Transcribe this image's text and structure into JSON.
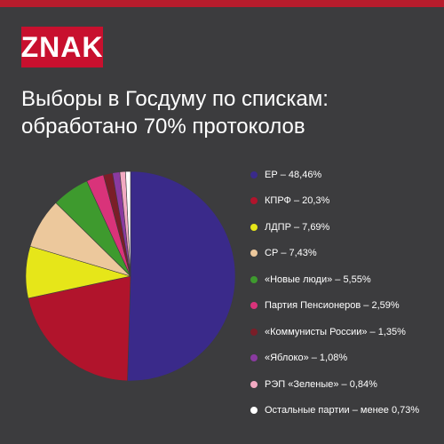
{
  "brand": {
    "logo_text": "ZNAK",
    "accent": "#c8102e"
  },
  "title": {
    "line1": "Выборы в Госдуму по спискам:",
    "line2": "обработано 70% протоколов"
  },
  "chart_data": {
    "type": "pie",
    "legend_position": "right",
    "slices": [
      {
        "label": "ЕР – 48,46%",
        "value": 48.46,
        "color": "#3a2a8a"
      },
      {
        "label": "КПРФ – 20,3%",
        "value": 20.3,
        "color": "#b1142c"
      },
      {
        "label": "ЛДПР – 7,69%",
        "value": 7.69,
        "color": "#e6e619"
      },
      {
        "label": "СР – 7,43%",
        "value": 7.43,
        "color": "#ecc89c"
      },
      {
        "label": "«Новые люди» – 5,55%",
        "value": 5.55,
        "color": "#3e9a2e"
      },
      {
        "label": "Партия Пенсионеров – 2,59%",
        "value": 2.59,
        "color": "#d9337a"
      },
      {
        "label": "«Коммунисты России» – 1,35%",
        "value": 1.35,
        "color": "#7a1e28"
      },
      {
        "label": "«Яблоко» – 1,08%",
        "value": 1.08,
        "color": "#8a3aa0"
      },
      {
        "label": "РЭП «Зеленые» – 0,84%",
        "value": 0.84,
        "color": "#f2aac2"
      },
      {
        "label": "Остальные партии – менее 0,73%",
        "value": 0.73,
        "color": "#ffffff"
      }
    ]
  }
}
